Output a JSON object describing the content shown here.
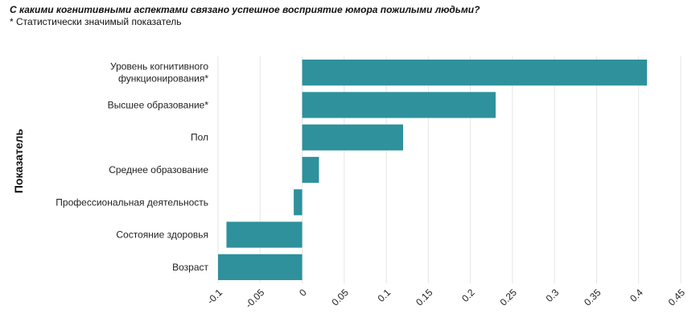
{
  "chart_data": {
    "type": "bar",
    "orientation": "horizontal",
    "title": "С какими когнитивными аспектами связано успешное восприятие юмора пожилыми людьми?",
    "subtitle": "* Статистически значимый показатель",
    "ylabel": "Показатель",
    "xlabel": "",
    "categories": [
      [
        "Уровень когнитивного",
        "функционирования*"
      ],
      [
        "Высшее образование*"
      ],
      [
        "Пол"
      ],
      [
        "Среднее образование"
      ],
      [
        "Профессиональная деятельность"
      ],
      [
        "Состояние здоровья"
      ],
      [
        "Возраст"
      ]
    ],
    "values": [
      0.41,
      0.23,
      0.12,
      0.02,
      -0.01,
      -0.09,
      -0.1
    ],
    "xlim": [
      -0.1,
      0.45
    ],
    "xticks": [
      -0.1,
      -0.05,
      0,
      0.05,
      0.1,
      0.15,
      0.2,
      0.25,
      0.3,
      0.35,
      0.4,
      0.45
    ],
    "xtick_labels": [
      "-0.1",
      "-0.05",
      "0",
      "0.05",
      "0.1",
      "0.15",
      "0.2",
      "0.25",
      "0.3",
      "0.35",
      "0.4",
      "0.45"
    ],
    "grid": true,
    "bar_color": "#2e919c",
    "grid_color": "#e6e6e6"
  }
}
